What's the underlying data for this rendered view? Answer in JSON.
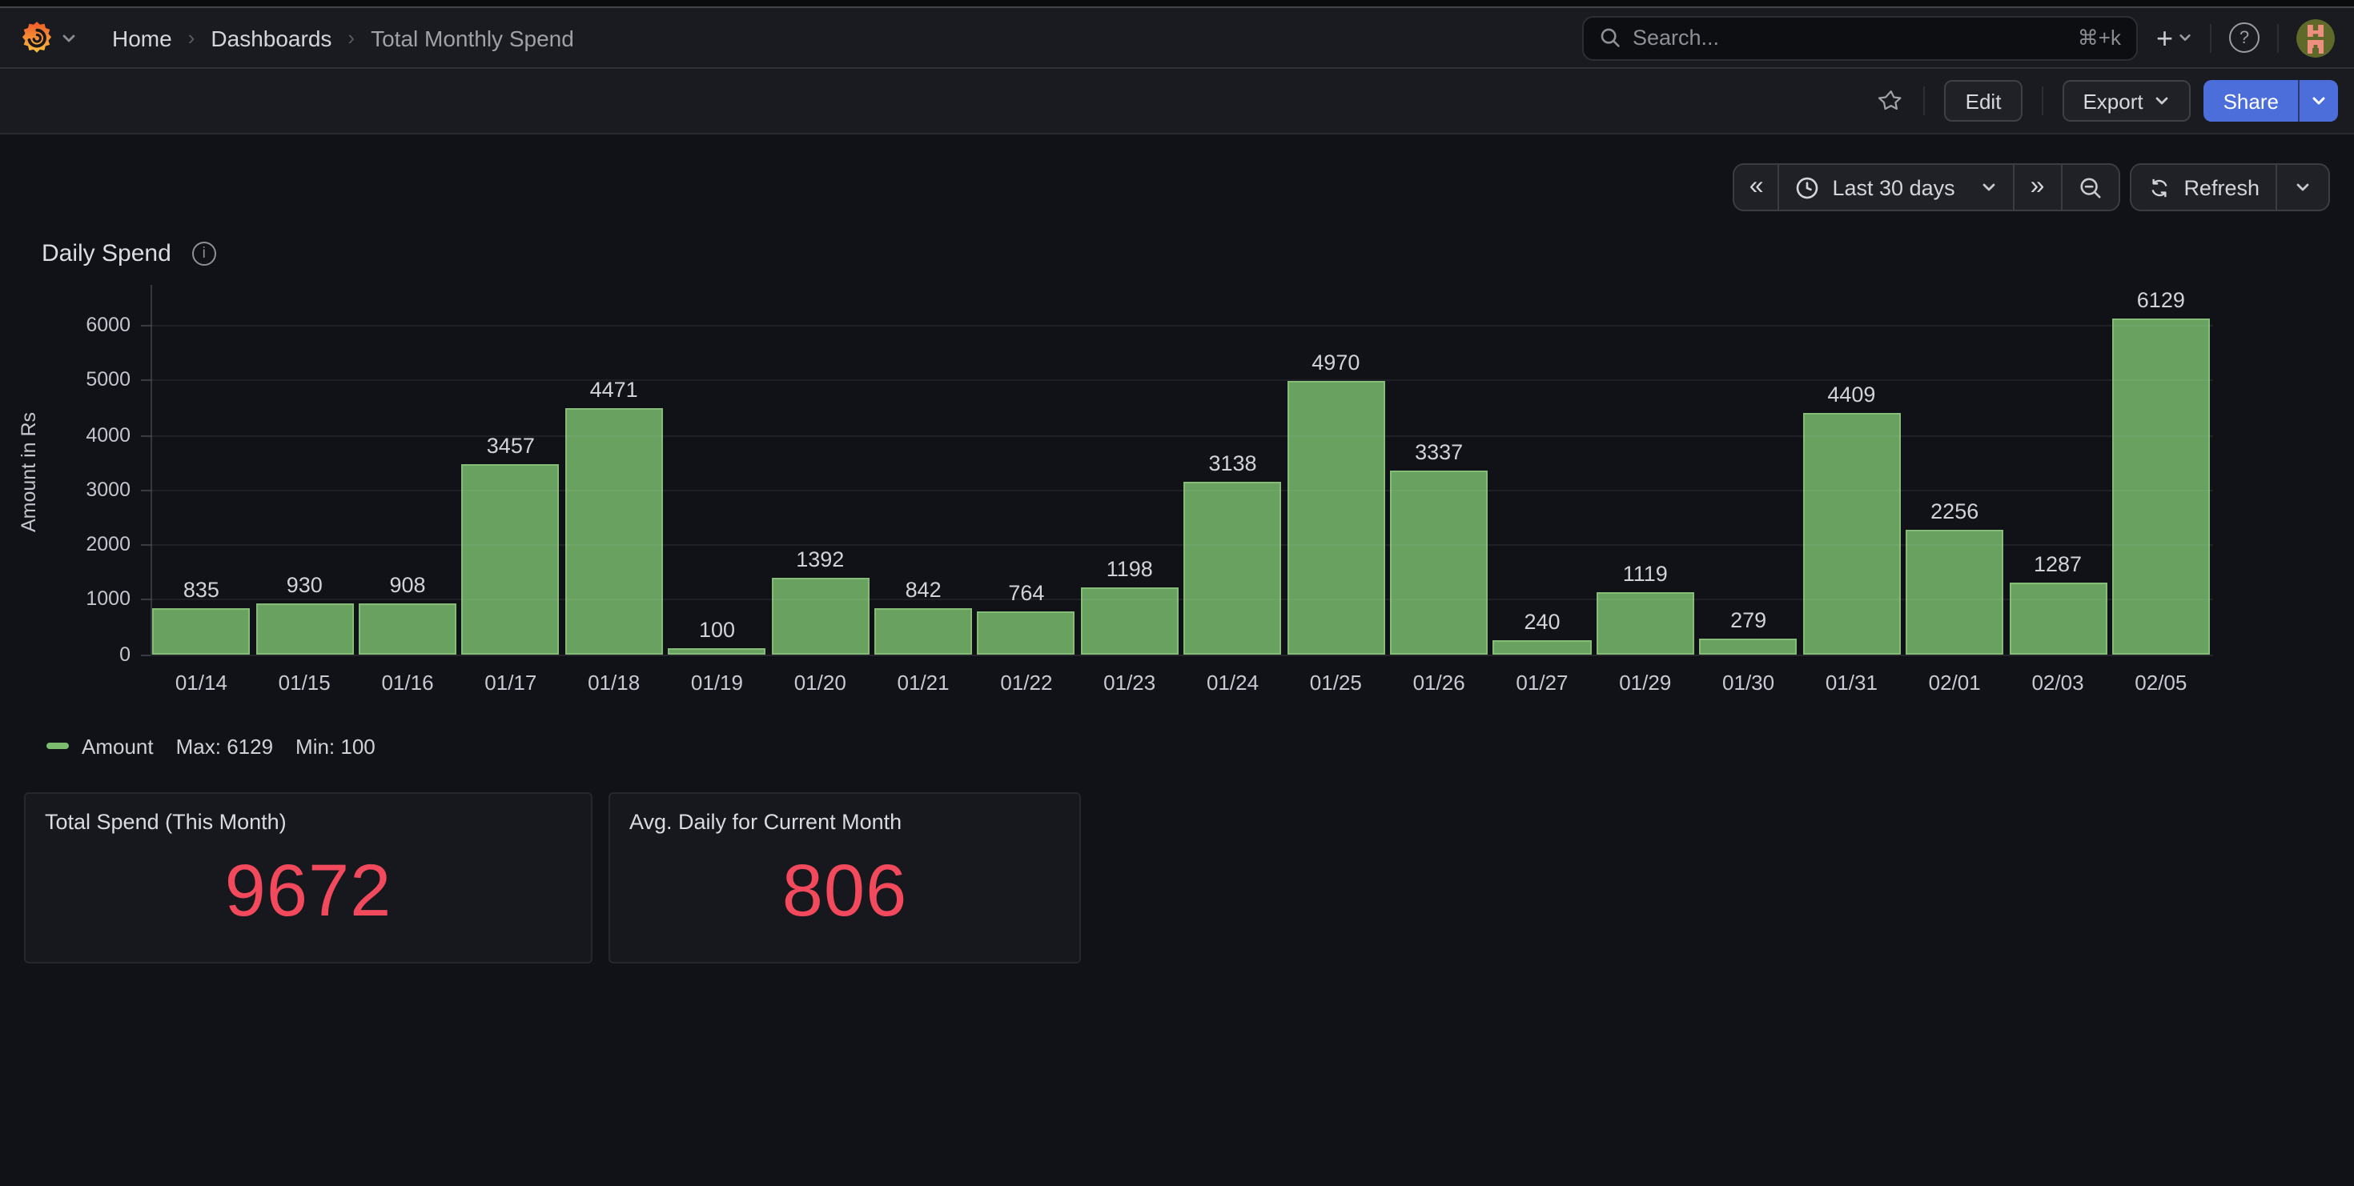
{
  "nav": {
    "breadcrumb": [
      {
        "label": "Home"
      },
      {
        "label": "Dashboards"
      },
      {
        "label": "Total Monthly Spend"
      }
    ],
    "search": {
      "placeholder": "Search...",
      "shortcut": "⌘+k"
    }
  },
  "toolbar": {
    "edit_label": "Edit",
    "export_label": "Export",
    "share_label": "Share"
  },
  "timebar": {
    "range_label": "Last 30 days",
    "refresh_label": "Refresh"
  },
  "panel": {
    "title": "Daily Spend"
  },
  "chart_data": {
    "type": "bar",
    "title": "Daily Spend",
    "series_name": "Amount",
    "categories": [
      "01/14",
      "01/15",
      "01/16",
      "01/17",
      "01/18",
      "01/19",
      "01/20",
      "01/21",
      "01/22",
      "01/23",
      "01/24",
      "01/25",
      "01/26",
      "01/27",
      "01/29",
      "01/30",
      "01/31",
      "02/01",
      "02/03",
      "02/05"
    ],
    "values": [
      835,
      930,
      908,
      3457,
      4471,
      100,
      1392,
      842,
      764,
      1198,
      3138,
      4970,
      3337,
      240,
      1119,
      279,
      4409,
      2256,
      1287,
      6129
    ],
    "xlabel": "",
    "ylabel": "Amount in Rs",
    "ylim": [
      0,
      6730
    ],
    "yticks": [
      0,
      1000,
      2000,
      3000,
      4000,
      5000,
      6000
    ],
    "grid": true,
    "value_labels": true,
    "legend_position": "bottom",
    "bar_fill": "#69a260",
    "bar_border": "#85bd77"
  },
  "legend": {
    "series_label": "Amount",
    "max_label": "Max: 6129",
    "min_label": "Min: 100"
  },
  "stats": [
    {
      "title": "Total Spend (This Month)",
      "value": "9672"
    },
    {
      "title": "Avg. Daily for Current Month",
      "value": "806"
    }
  ],
  "colors": {
    "accent_blue": "#4c6edb",
    "stat_value_red": "#f2495c",
    "series_green": "#7dbb6f"
  }
}
